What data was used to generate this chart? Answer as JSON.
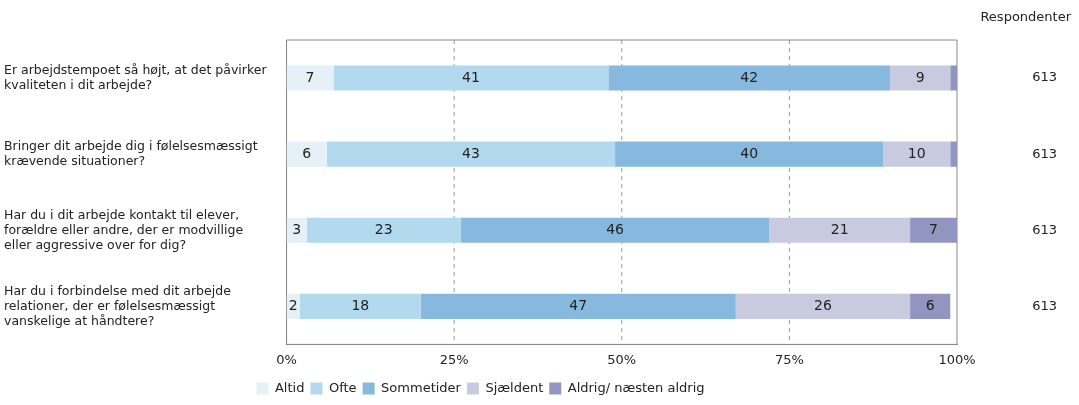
{
  "chart_data": {
    "type": "bar",
    "orientation": "horizontal",
    "stacked": true,
    "categories": [
      "Er arbejdstempoet så højt, at det påvirker kvaliteten i dit arbejde?",
      "Bringer dit arbejde dig i følelsesmæssigt krævende situationer?",
      "Har du i dit arbejde kontakt til elever, forældre eller andre, der er modvillige eller aggressive over for dig?",
      "Har du i forbindelse med dit arbejde relationer, der er følelsesmæssigt vanskelige at håndtere?"
    ],
    "series": [
      {
        "name": "Altid",
        "color": "#e6f0f7",
        "values": [
          7,
          6,
          3,
          2
        ],
        "value_labels": [
          "7",
          "6",
          "3",
          "2"
        ]
      },
      {
        "name": "Ofte",
        "color": "#b3d9ee",
        "values": [
          41,
          43,
          23,
          18
        ],
        "value_labels": [
          "41",
          "43",
          "23",
          "18"
        ]
      },
      {
        "name": "Sommetider",
        "color": "#86b9dd",
        "values": [
          42,
          40,
          46,
          47
        ],
        "value_labels": [
          "42",
          "40",
          "46",
          "47"
        ]
      },
      {
        "name": "Sjældent",
        "color": "#c8cbe0",
        "values": [
          9,
          10,
          21,
          26
        ],
        "value_labels": [
          "9",
          "10",
          "21",
          "26"
        ]
      },
      {
        "name": "Aldrig/ næsten aldrig",
        "color": "#9195c0",
        "values": [
          1,
          1,
          7,
          6
        ],
        "value_labels": [
          null,
          null,
          "7",
          "6"
        ]
      }
    ],
    "xlim": [
      0,
      100
    ],
    "xticks": [
      {
        "value": 0,
        "label": "0%"
      },
      {
        "value": 25,
        "label": "25%"
      },
      {
        "value": 50,
        "label": "50%"
      },
      {
        "value": 75,
        "label": "75%"
      },
      {
        "value": 100,
        "label": "100%"
      }
    ],
    "grid": "x",
    "legend": "bottom",
    "annotations": [
      "Respondenter",
      "613",
      "613",
      "613",
      "613"
    ]
  }
}
